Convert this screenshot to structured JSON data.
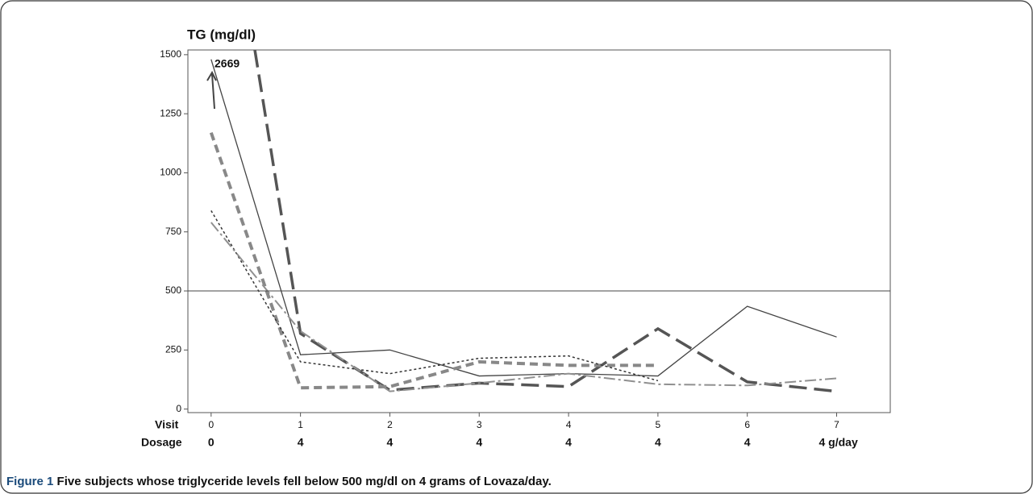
{
  "chart_data": {
    "type": "line",
    "y_label": "TG (mg/dl)",
    "x": [
      0,
      1,
      2,
      3,
      4,
      5,
      6,
      7
    ],
    "xlim": [
      -0.26,
      7.6
    ],
    "xticks": [
      0,
      1,
      2,
      3,
      4,
      5,
      6,
      7
    ],
    "ylim": [
      -15,
      1520
    ],
    "yticks": [
      0,
      250,
      500,
      750,
      1000,
      1250,
      1500
    ],
    "reference_line": 500,
    "row_labels": [
      "Visit",
      "Dosage"
    ],
    "dosage": [
      "0",
      "4",
      "4",
      "4",
      "4",
      "4",
      "4",
      "4 g/day"
    ],
    "series": [
      {
        "color": "#444444",
        "width": 1.3,
        "dash": "none",
        "values": [
          1480,
          230,
          250,
          140,
          150,
          140,
          435,
          305
        ]
      },
      {
        "color": "#555555",
        "width": 3.5,
        "dash": "22,9",
        "values": [
          2669,
          320,
          80,
          110,
          95,
          340,
          115,
          75
        ]
      },
      {
        "color": "#888888",
        "width": 4,
        "dash": "10,6",
        "values": [
          1170,
          90,
          95,
          200,
          185,
          185,
          null,
          null
        ]
      },
      {
        "color": "#333333",
        "width": 1.5,
        "dash": "3,3",
        "values": [
          840,
          200,
          150,
          215,
          225,
          120,
          null,
          null
        ]
      },
      {
        "color": "#909090",
        "width": 2,
        "dash": "14,4,3,4",
        "values": [
          790,
          330,
          75,
          110,
          150,
          105,
          100,
          130
        ]
      }
    ],
    "caption_label": "Figure 1",
    "caption": "Five subjects whose triglyceride levels fell below 500 mg/dl on 4 grams of Lovaza/day."
  }
}
